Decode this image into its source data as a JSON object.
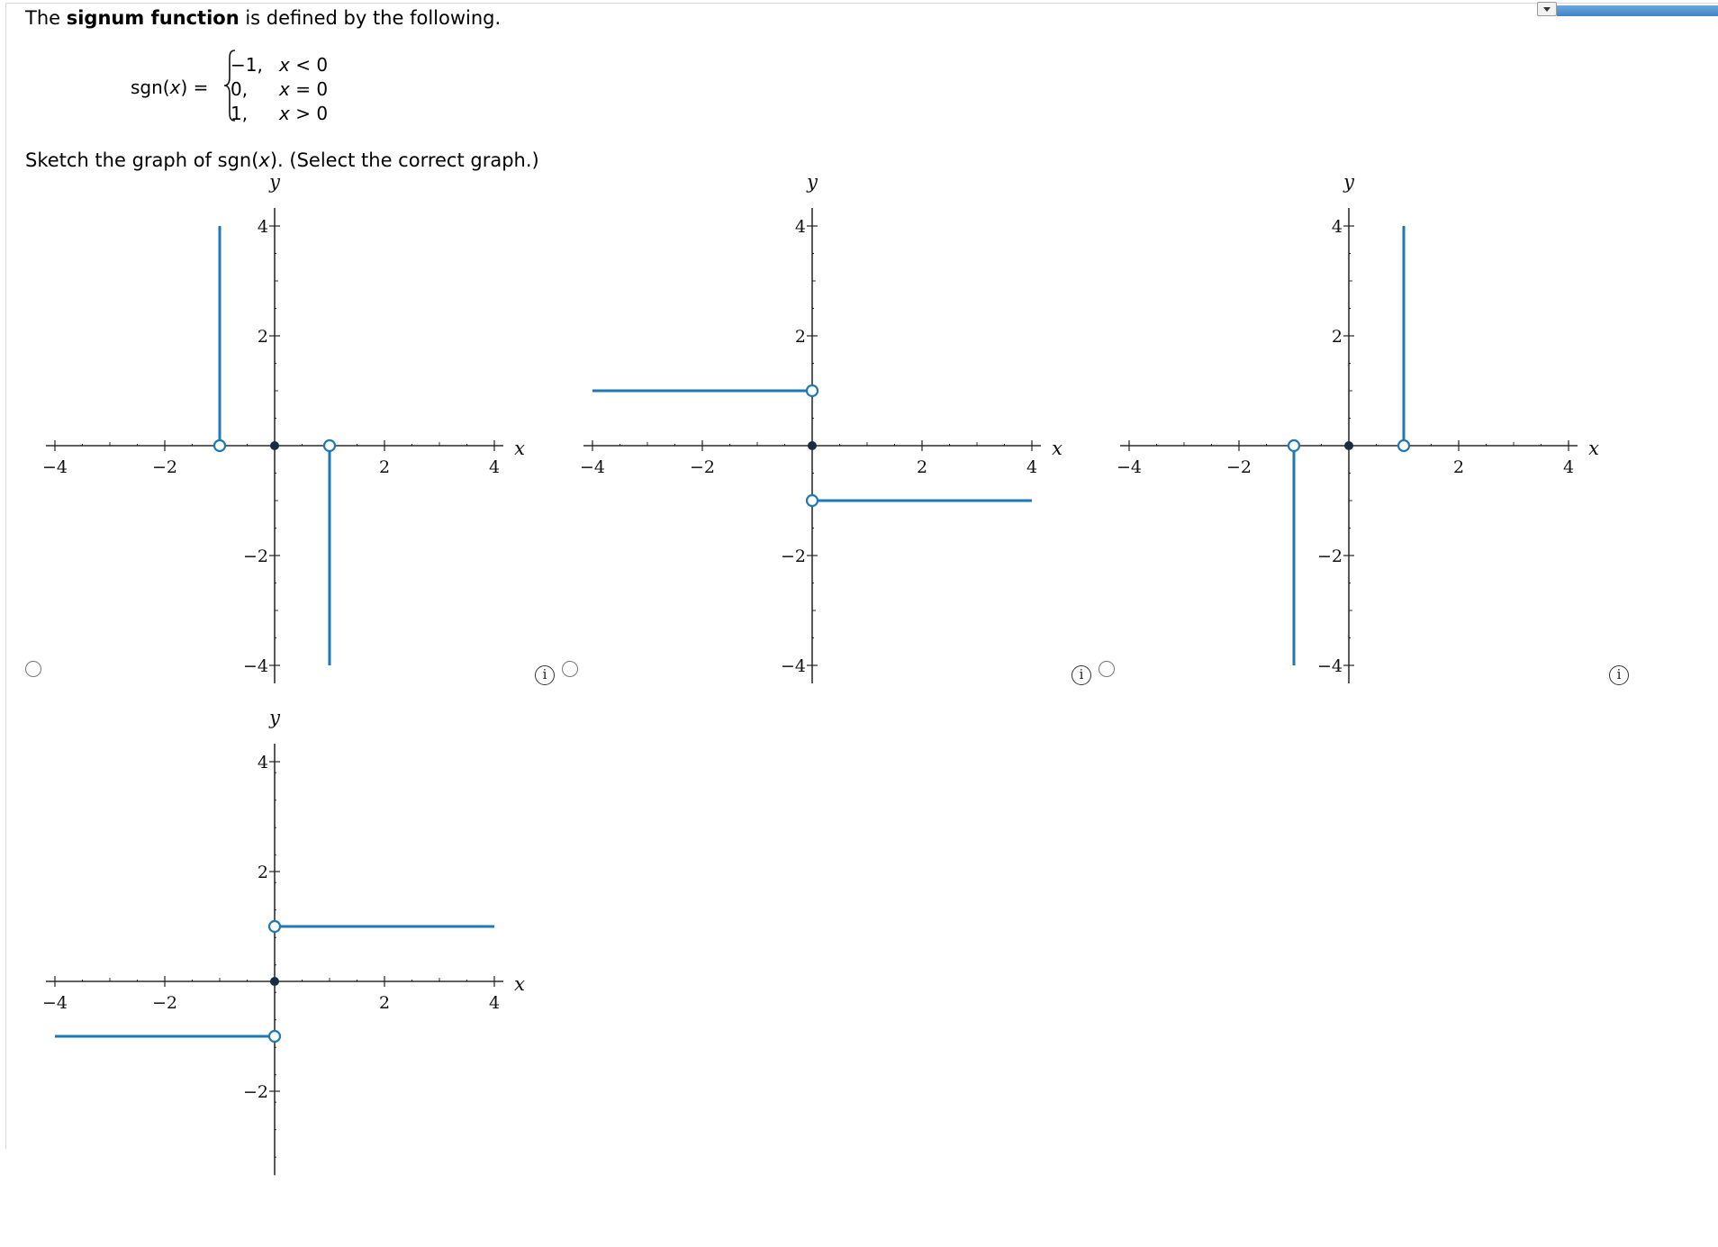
{
  "question": {
    "intro_prefix": "The ",
    "intro_bold": "signum function",
    "intro_suffix": " is defined by the following.",
    "definition": {
      "lhs_prefix": "sgn(",
      "lhs_var": "x",
      "lhs_suffix": ") =",
      "cases": [
        {
          "value": "−1,",
          "cond_var": "x",
          "cond_rest": " < 0"
        },
        {
          "value": "0,",
          "cond_var": "x",
          "cond_rest": " = 0"
        },
        {
          "value": "1,",
          "cond_var": "x",
          "cond_rest": " > 0"
        }
      ]
    },
    "prompt_prefix": "Sketch the graph of sgn(",
    "prompt_var": "x",
    "prompt_suffix": "). (Select the correct graph.)"
  },
  "colors": {
    "curve": "#1f77b4",
    "axis": "#000000",
    "dot": "#1a2b44",
    "radio_border": "#777777"
  },
  "chart_data": [
    {
      "type": "line",
      "xlabel": "x",
      "ylabel": "y",
      "xlim": [
        -4,
        4
      ],
      "ylim": [
        -4,
        4
      ],
      "x_ticks": [
        "−4",
        "−2",
        "2",
        "4"
      ],
      "y_ticks": [
        "4",
        "2",
        "−2",
        "−4"
      ],
      "segments": [
        {
          "x": [
            -1,
            -1
          ],
          "y": [
            0,
            4
          ]
        },
        {
          "x": [
            1,
            1
          ],
          "y": [
            0,
            -4
          ]
        }
      ],
      "open_points": [
        [
          -1,
          0
        ],
        [
          1,
          0
        ]
      ],
      "closed_points": [
        [
          0,
          0
        ]
      ]
    },
    {
      "type": "line",
      "xlabel": "x",
      "ylabel": "y",
      "xlim": [
        -4,
        4
      ],
      "ylim": [
        -4,
        4
      ],
      "x_ticks": [
        "−4",
        "−2",
        "2",
        "4"
      ],
      "y_ticks": [
        "4",
        "2",
        "−2",
        "−4"
      ],
      "segments": [
        {
          "x": [
            -4,
            0
          ],
          "y": [
            1,
            1
          ]
        },
        {
          "x": [
            0,
            4
          ],
          "y": [
            -1,
            -1
          ]
        }
      ],
      "open_points": [
        [
          0,
          1
        ],
        [
          0,
          -1
        ]
      ],
      "closed_points": [
        [
          0,
          0
        ]
      ]
    },
    {
      "type": "line",
      "xlabel": "x",
      "ylabel": "y",
      "xlim": [
        -4,
        4
      ],
      "ylim": [
        -4,
        4
      ],
      "x_ticks": [
        "−4",
        "−2",
        "2",
        "4"
      ],
      "y_ticks": [
        "4",
        "2",
        "−2",
        "−4"
      ],
      "segments": [
        {
          "x": [
            -1,
            -1
          ],
          "y": [
            0,
            -4
          ]
        },
        {
          "x": [
            1,
            1
          ],
          "y": [
            0,
            4
          ]
        }
      ],
      "open_points": [
        [
          -1,
          0
        ],
        [
          1,
          0
        ]
      ],
      "closed_points": [
        [
          0,
          0
        ]
      ]
    },
    {
      "type": "line",
      "xlabel": "x",
      "ylabel": "y",
      "xlim": [
        -4,
        4
      ],
      "ylim": [
        -3.2,
        4
      ],
      "x_ticks": [
        "−4",
        "−2",
        "2",
        "4"
      ],
      "y_ticks": [
        "4",
        "2",
        "−2"
      ],
      "segments": [
        {
          "x": [
            -4,
            0
          ],
          "y": [
            -1,
            -1
          ]
        },
        {
          "x": [
            0,
            4
          ],
          "y": [
            1,
            1
          ]
        }
      ],
      "open_points": [
        [
          0,
          1
        ],
        [
          0,
          -1
        ]
      ],
      "closed_points": [
        [
          0,
          0
        ]
      ]
    }
  ],
  "options": [
    {
      "selected": false,
      "info_icon": "info-icon"
    },
    {
      "selected": false,
      "info_icon": "info-icon"
    },
    {
      "selected": false,
      "info_icon": "info-icon"
    },
    {
      "selected": false
    }
  ],
  "info_glyph": "i"
}
